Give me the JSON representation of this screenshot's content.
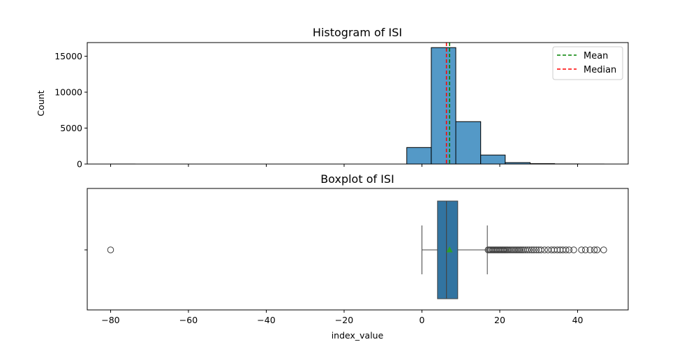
{
  "chart_data": [
    {
      "type": "histogram",
      "title": "Histogram of ISI",
      "ylabel": "Count",
      "xlabel": "",
      "xlim": [
        -86,
        53
      ],
      "ylim": [
        0,
        16900
      ],
      "x_ticks": [
        -80,
        -60,
        -40,
        -20,
        0,
        20,
        40
      ],
      "y_ticks": [
        0,
        5000,
        10000,
        15000
      ],
      "y_tick_labels": [
        "0",
        "5000",
        "10000",
        "15000"
      ],
      "bar_color": "#5499c7",
      "bins": [
        {
          "x0": -80.0,
          "x1": -73.7,
          "count": 5
        },
        {
          "x0": -73.7,
          "x1": -67.3,
          "count": 0
        },
        {
          "x0": -67.3,
          "x1": -61.0,
          "count": 0
        },
        {
          "x0": -61.0,
          "x1": -54.7,
          "count": 0
        },
        {
          "x0": -54.7,
          "x1": -48.3,
          "count": 0
        },
        {
          "x0": -48.3,
          "x1": -42.0,
          "count": 0
        },
        {
          "x0": -42.0,
          "x1": -35.6,
          "count": 0
        },
        {
          "x0": -35.6,
          "x1": -29.3,
          "count": 0
        },
        {
          "x0": -29.3,
          "x1": -23.0,
          "count": 0
        },
        {
          "x0": -23.0,
          "x1": -16.6,
          "count": 0
        },
        {
          "x0": -16.6,
          "x1": -10.3,
          "count": 0
        },
        {
          "x0": -10.3,
          "x1": -3.9,
          "count": 0
        },
        {
          "x0": -3.9,
          "x1": 2.4,
          "count": 2300
        },
        {
          "x0": 2.4,
          "x1": 8.7,
          "count": 16200
        },
        {
          "x0": 8.7,
          "x1": 15.1,
          "count": 5900
        },
        {
          "x0": 15.1,
          "x1": 21.4,
          "count": 1250
        },
        {
          "x0": 21.4,
          "x1": 27.8,
          "count": 200
        },
        {
          "x0": 27.8,
          "x1": 34.1,
          "count": 60
        },
        {
          "x0": 34.1,
          "x1": 40.4,
          "count": 15
        },
        {
          "x0": 40.4,
          "x1": 46.8,
          "count": 5
        }
      ],
      "mean": 7.1,
      "median": 6.3,
      "legend": [
        {
          "label": "Mean",
          "color": "#008000",
          "style": "dashed"
        },
        {
          "label": "Median",
          "color": "#ff0000",
          "style": "dashed"
        }
      ],
      "legend_position": "top-right"
    },
    {
      "type": "box",
      "title": "Boxplot of ISI",
      "xlabel": "index_value",
      "xlim": [
        -86,
        53
      ],
      "x_ticks": [
        -80,
        -60,
        -40,
        -20,
        0,
        20,
        40
      ],
      "x_tick_labels": [
        "−80",
        "−60",
        "−40",
        "−20",
        "0",
        "20",
        "40"
      ],
      "box_color": "#3274a1",
      "mean_marker_color": "#2ca02c",
      "whisker_low": 0,
      "q1": 4.0,
      "median": 6.3,
      "q3": 9.2,
      "whisker_high": 16.8,
      "mean": 7.1,
      "outliers": [
        -80.0,
        17.0,
        17.3,
        17.6,
        17.9,
        18.2,
        18.5,
        18.8,
        19.1,
        19.4,
        19.7,
        20.0,
        20.3,
        20.6,
        20.9,
        21.2,
        21.5,
        21.8,
        22.1,
        22.5,
        22.9,
        23.3,
        23.7,
        24.1,
        24.5,
        24.9,
        25.3,
        25.7,
        26.1,
        26.6,
        27.1,
        27.6,
        28.2,
        28.8,
        29.4,
        30.0,
        30.6,
        31.5,
        32.4,
        33.3,
        34.0,
        34.8,
        35.5,
        36.2,
        37.0,
        37.8,
        39.0,
        41.0,
        42.0,
        43.2,
        44.3,
        45.0,
        46.7
      ]
    }
  ]
}
